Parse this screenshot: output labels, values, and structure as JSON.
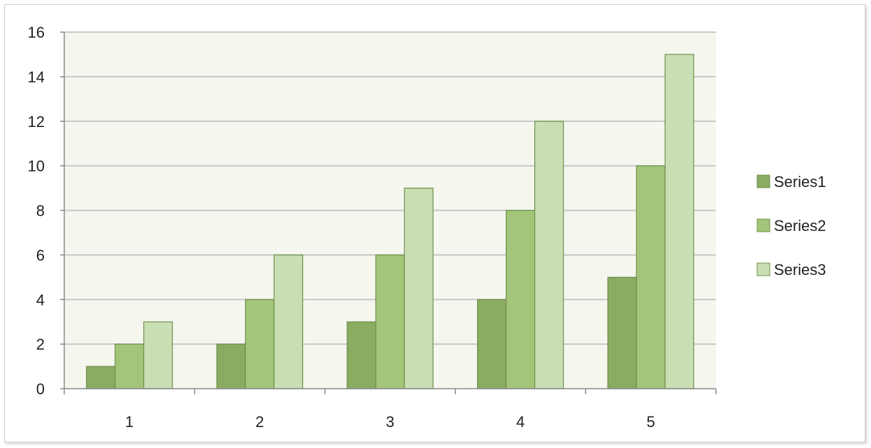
{
  "chart_data": {
    "type": "bar",
    "title": "",
    "xlabel": "",
    "ylabel": "",
    "categories": [
      "1",
      "2",
      "3",
      "4",
      "5"
    ],
    "series": [
      {
        "name": "Series1",
        "values": [
          1,
          2,
          3,
          4,
          5
        ],
        "color": "#8aab62"
      },
      {
        "name": "Series2",
        "values": [
          2,
          4,
          6,
          8,
          10
        ],
        "color": "#a3c579"
      },
      {
        "name": "Series3",
        "values": [
          3,
          6,
          9,
          12,
          15
        ],
        "color": "#c9deb3"
      }
    ],
    "ylim": [
      0,
      16
    ],
    "yticks": [
      0,
      2,
      4,
      6,
      8,
      10,
      12,
      14,
      16
    ],
    "grid": true,
    "legend_position": "right",
    "plot_background": "#f5f7ef",
    "gridline_color": "#c7c7c7",
    "bar_outline_color": "#6f8e4a"
  }
}
